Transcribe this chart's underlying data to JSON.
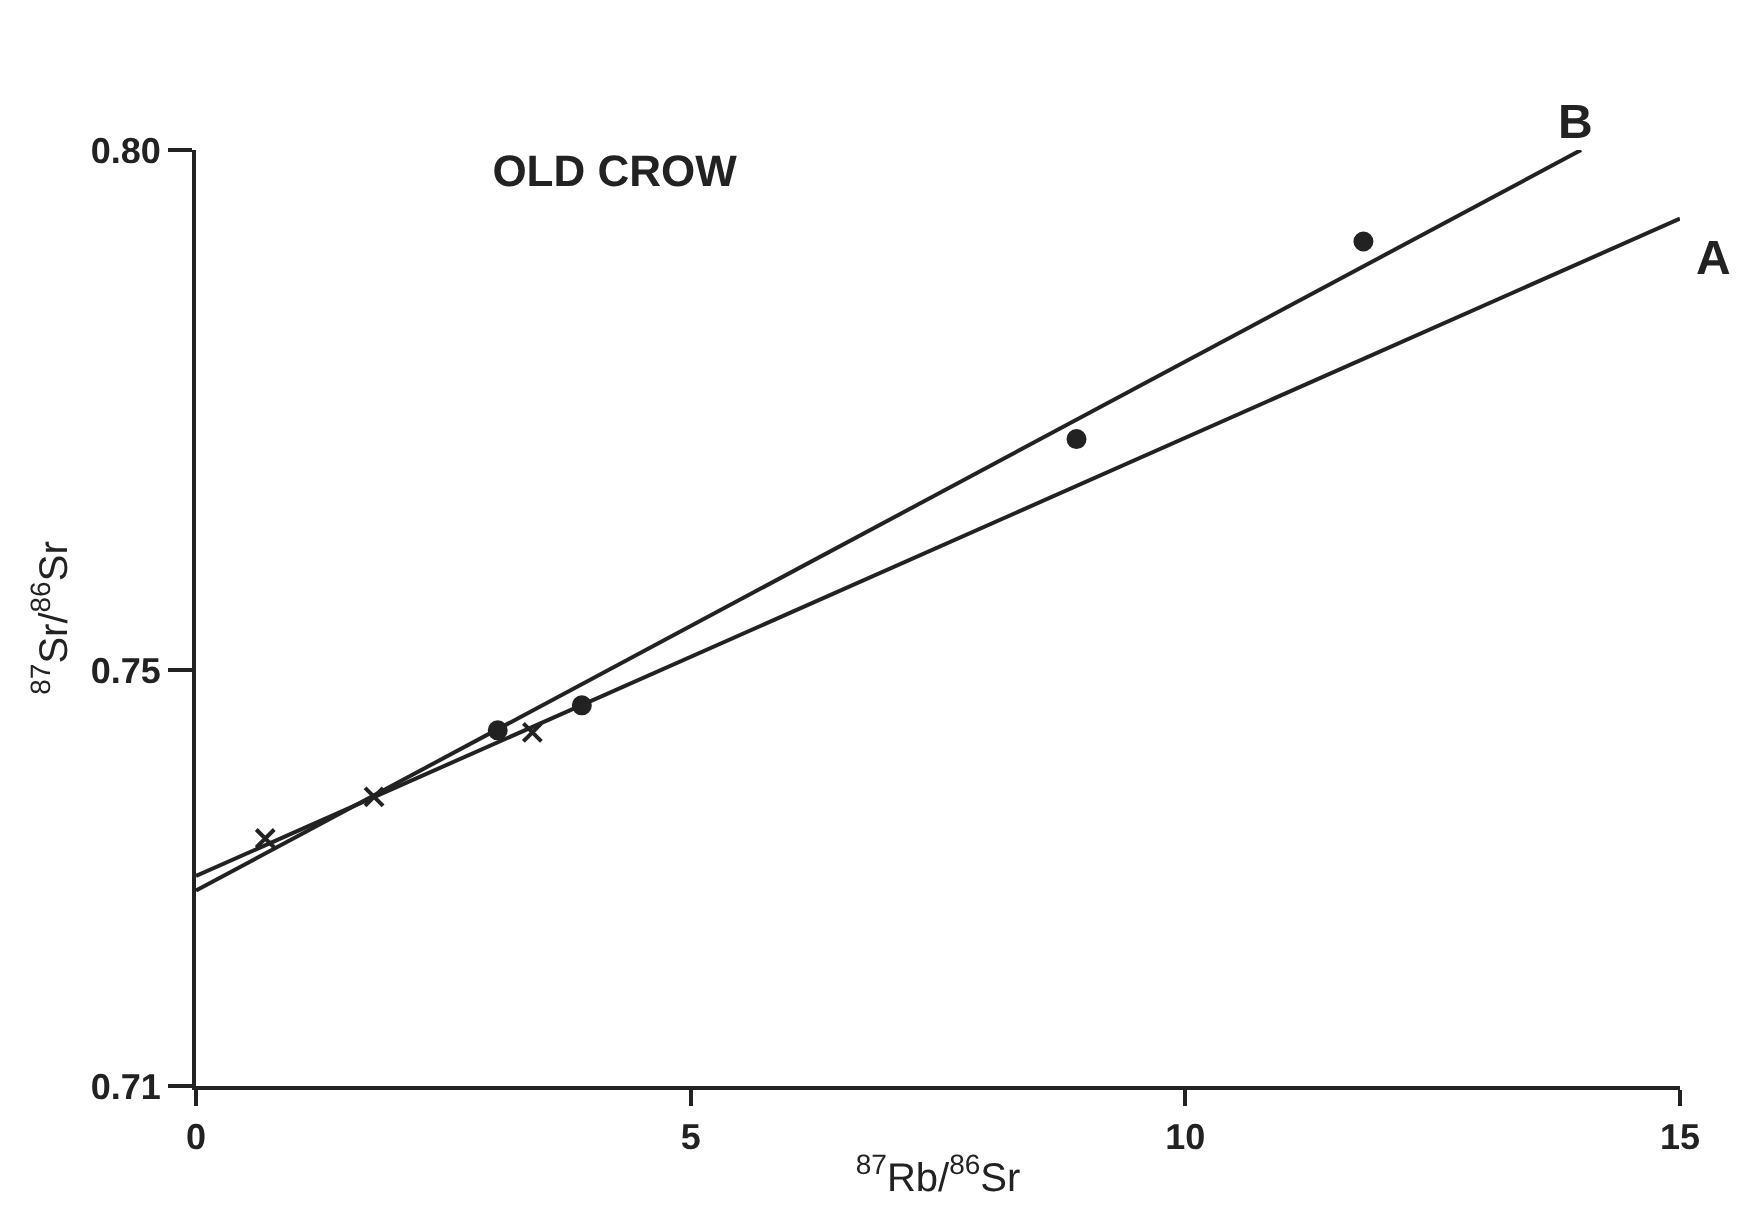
{
  "chart_data": {
    "type": "scatter",
    "title": "OLD CROW",
    "xlabel": "$^{87}$Rb/$^{86}$Sr",
    "ylabel": "$^{87}$Sr/$^{86}$Sr",
    "xlim": [
      0,
      15
    ],
    "xticks": [
      0,
      5,
      10,
      15
    ],
    "ylim": [
      0.71,
      0.8
    ],
    "yticks": [
      0.71,
      0.75,
      {
        "value": 0.8,
        "label": "0.80"
      }
    ],
    "grid": false,
    "legend": false,
    "color": "#222222",
    "series": [
      {
        "marker": "circle",
        "x": [
          3.05,
          3.9,
          8.9,
          11.8
        ],
        "values": [
          0.7442,
          0.7466,
          0.7722,
          0.7912
        ]
      },
      {
        "marker": "cross",
        "x": [
          0.7,
          1.8,
          3.4
        ],
        "values": [
          0.7338,
          0.7378,
          0.744
        ]
      },
      {
        "type": "line",
        "name": "A",
        "marker": "none",
        "line_style": "solid",
        "x": [
          0,
          15
        ],
        "values": [
          0.7302,
          0.7934
        ]
      },
      {
        "type": "line",
        "name": "B",
        "marker": "none",
        "line_style": "solid",
        "x": [
          0,
          14
        ],
        "values": [
          0.7288,
          0.8
        ]
      }
    ]
  }
}
